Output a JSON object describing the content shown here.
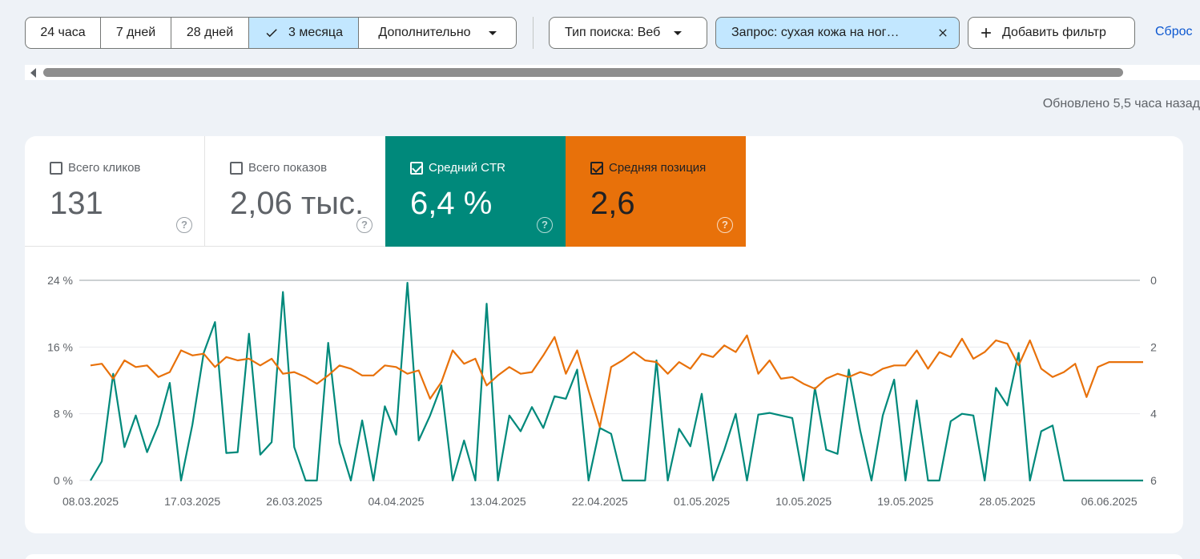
{
  "filters": {
    "periods": [
      {
        "label": "24 часа",
        "selected": false
      },
      {
        "label": "7 дней",
        "selected": false
      },
      {
        "label": "28 дней",
        "selected": false
      },
      {
        "label": "3 месяца",
        "selected": true
      }
    ],
    "more_label": "Дополнительно",
    "search_type_label": "Тип поиска: Веб",
    "query_label": "Запрос: сухая кожа на ног…",
    "add_filter_label": "Добавить фильтр",
    "reset_label": "Сброс"
  },
  "updated_text": "Обновлено 5,5 часа назад",
  "metrics": {
    "clicks": {
      "label": "Всего кликов",
      "value": "131",
      "checked": false
    },
    "impressions": {
      "label": "Всего показов",
      "value": "2,06 тыс.",
      "checked": false
    },
    "ctr": {
      "label": "Средний CTR",
      "value": "6,4 %",
      "checked": true,
      "color": "#00897b"
    },
    "position": {
      "label": "Средняя позиция",
      "value": "2,6",
      "checked": true,
      "color": "#e8710a"
    },
    "help_glyph": "?"
  },
  "chart_data": {
    "type": "line",
    "x": [
      "08.03.2025",
      "09.03.2025",
      "10.03.2025",
      "11.03.2025",
      "12.03.2025",
      "13.03.2025",
      "14.03.2025",
      "15.03.2025",
      "16.03.2025",
      "17.03.2025",
      "18.03.2025",
      "19.03.2025",
      "20.03.2025",
      "21.03.2025",
      "22.03.2025",
      "23.03.2025",
      "24.03.2025",
      "25.03.2025",
      "26.03.2025",
      "27.03.2025",
      "28.03.2025",
      "29.03.2025",
      "30.03.2025",
      "31.03.2025",
      "01.04.2025",
      "02.04.2025",
      "03.04.2025",
      "04.04.2025",
      "05.04.2025",
      "06.04.2025",
      "07.04.2025",
      "08.04.2025",
      "09.04.2025",
      "10.04.2025",
      "11.04.2025",
      "12.04.2025",
      "13.04.2025",
      "14.04.2025",
      "15.04.2025",
      "16.04.2025",
      "17.04.2025",
      "18.04.2025",
      "19.04.2025",
      "20.04.2025",
      "21.04.2025",
      "22.04.2025",
      "23.04.2025",
      "24.04.2025",
      "25.04.2025",
      "26.04.2025",
      "27.04.2025",
      "28.04.2025",
      "29.04.2025",
      "30.04.2025",
      "01.05.2025",
      "02.05.2025",
      "03.05.2025",
      "04.05.2025",
      "05.05.2025",
      "06.05.2025",
      "07.05.2025",
      "08.05.2025",
      "09.05.2025",
      "10.05.2025",
      "11.05.2025",
      "12.05.2025",
      "13.05.2025",
      "14.05.2025",
      "15.05.2025",
      "16.05.2025",
      "17.05.2025",
      "18.05.2025",
      "19.05.2025",
      "20.05.2025",
      "21.05.2025",
      "22.05.2025",
      "23.05.2025",
      "24.05.2025",
      "25.05.2025",
      "26.05.2025",
      "27.05.2025",
      "28.05.2025",
      "29.05.2025",
      "30.05.2025",
      "31.05.2025",
      "01.06.2025",
      "02.06.2025",
      "03.06.2025",
      "04.06.2025",
      "05.06.2025",
      "06.06.2025",
      "07.06.2025",
      "08.06.2025",
      "09.06.2025"
    ],
    "x_ticks": [
      "08.03.2025",
      "17.03.2025",
      "26.03.2025",
      "04.04.2025",
      "13.04.2025",
      "22.04.2025",
      "01.05.2025",
      "10.05.2025",
      "19.05.2025",
      "28.05.2025",
      "06.06.2025"
    ],
    "y_left_ticks": [
      "24 %",
      "16 %",
      "8 %",
      "0 %"
    ],
    "y_right_ticks": [
      "0",
      "2",
      "4",
      "6"
    ],
    "y_left_range": [
      0,
      24
    ],
    "y_right_range": [
      0,
      6
    ],
    "y_right_inverted": true,
    "grid": true,
    "series": [
      {
        "name": "Средний CTR",
        "axis": "left",
        "color": "#00897b",
        "values": [
          0,
          2.3,
          12.8,
          4,
          7.8,
          3.4,
          6.7,
          11.7,
          0,
          6.7,
          15.3,
          19,
          3.3,
          3.4,
          17.6,
          3.1,
          4.6,
          22.6,
          4,
          0,
          0,
          16.5,
          4.5,
          0,
          7.2,
          0,
          8.9,
          5.5,
          23.7,
          4.8,
          7.8,
          11.4,
          0,
          4.8,
          0,
          21.2,
          0,
          7.8,
          5.9,
          8.8,
          6.3,
          10.1,
          9.8,
          13.3,
          0,
          6.3,
          5.6,
          0,
          0,
          0,
          14.4,
          0,
          6.2,
          4.1,
          10.4,
          0,
          3.7,
          8,
          0,
          7.9,
          8.1,
          7.8,
          7.5,
          0,
          11.1,
          3.7,
          3.2,
          13.3,
          6,
          0,
          7.8,
          12.1,
          0,
          9.6,
          0,
          0,
          7.1,
          8,
          7.8,
          0,
          11.1,
          9,
          15.3,
          0,
          5.9,
          6.6,
          0,
          0,
          0,
          0,
          0,
          0,
          0,
          0
        ]
      },
      {
        "name": "Средняя позиция",
        "axis": "right",
        "color": "#e8710a",
        "values": [
          2.55,
          2.5,
          2.95,
          2.4,
          2.6,
          2.55,
          2.9,
          2.75,
          2.1,
          2.25,
          2.2,
          2.6,
          2.3,
          2.4,
          2.35,
          2.55,
          2.35,
          2.8,
          2.75,
          2.9,
          3.1,
          2.85,
          2.55,
          2.65,
          2.85,
          2.85,
          2.55,
          2.6,
          2.8,
          2.7,
          3.55,
          3.05,
          2.1,
          2.5,
          2.35,
          3.15,
          2.85,
          2.6,
          2.8,
          2.75,
          2.25,
          1.7,
          2.8,
          2.1,
          3.3,
          4.4,
          2.6,
          2.4,
          2.15,
          2.4,
          2.45,
          2.8,
          2.45,
          2.65,
          2.2,
          2.3,
          1.95,
          2.15,
          1.65,
          2.8,
          2.4,
          2.95,
          2.9,
          3.1,
          3.25,
          2.95,
          2.8,
          2.9,
          2.75,
          2.85,
          2.65,
          2.55,
          2.55,
          2.1,
          2.65,
          2.15,
          2.3,
          1.75,
          2.35,
          2.15,
          1.8,
          1.9,
          2.55,
          1.8,
          2.65,
          2.9,
          2.75,
          2.5,
          3.5,
          2.6,
          2.45,
          2.45,
          2.45,
          2.45
        ]
      }
    ]
  }
}
